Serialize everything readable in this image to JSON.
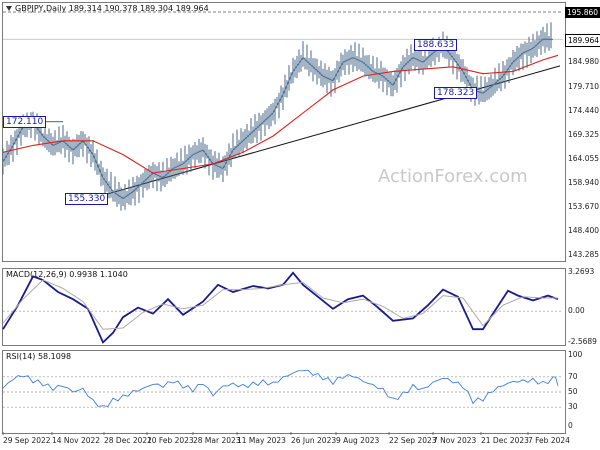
{
  "header": {
    "symbol": "GBPJPY,Daily",
    "ohlc": "189.314 190.378 189.304 189.964"
  },
  "watermark": "ActionForex.com",
  "chart_data": [
    {
      "type": "line",
      "title": "GBPJPY,Daily",
      "ylim": [
        143.285,
        195.86
      ],
      "y_ticks": [
        "195.860",
        "189.964",
        "184.980",
        "179.710",
        "174.440",
        "169.325",
        "164.055",
        "158.940",
        "153.670",
        "148.400",
        "143.285"
      ],
      "price_box": "195.860",
      "current_box": "189.964",
      "x_labels": [
        "29 Sep 2022",
        "14 Nov 2022",
        "28 Dec 2022",
        "10 Feb 2023",
        "28 Mar 2023",
        "11 May 2023",
        "26 Jun 2023",
        "9 Aug 2023",
        "22 Sep 2023",
        "7 Nov 2023",
        "21 Dec 2023",
        "7 Feb 2024"
      ],
      "annotations": [
        "172.110",
        "155.330",
        "188.633",
        "178.323"
      ],
      "series": [
        {
          "name": "",
          "x": [
            0,
            10,
            20,
            30,
            40,
            50,
            60,
            70,
            80,
            90,
            100,
            110,
            120,
            130,
            140,
            150,
            160,
            170,
            180,
            190,
            200,
            210,
            220,
            230,
            240,
            250,
            260,
            270,
            280,
            290,
            300,
            310,
            320,
            330,
            340,
            350,
            360,
            370,
            380,
            390,
            400,
            410,
            420,
            430,
            440,
            450,
            460,
            470,
            480,
            490,
            500,
            510,
            520,
            530,
            540,
            550
          ],
          "y": [
            163.5,
            167,
            171,
            172,
            169,
            167,
            168,
            166,
            168,
            165,
            160,
            157,
            155.5,
            157,
            159,
            161,
            160,
            162,
            163,
            165,
            166,
            163,
            162,
            166,
            168,
            170,
            172,
            174,
            178,
            183,
            186,
            184,
            182,
            181,
            185,
            186,
            185,
            183,
            182,
            180,
            184,
            186,
            185,
            187,
            188.6,
            186,
            183,
            179,
            178.3,
            180,
            182,
            185,
            187,
            188,
            190,
            189.9
          ]
        },
        {
          "name": "",
          "x": [
            0,
            30,
            60,
            90,
            120,
            150,
            180,
            210,
            240,
            270,
            300,
            330,
            360,
            390,
            420,
            450,
            480,
            510,
            540,
            555
          ],
          "y": [
            165.5,
            167,
            168,
            168,
            165,
            161,
            162,
            163,
            165.5,
            169,
            174,
            179,
            182,
            183,
            183.5,
            184,
            182.5,
            183,
            185.5,
            186.5
          ]
        }
      ]
    },
    {
      "type": "line",
      "title": "MACD(12,26,9) 0.9938 1.1040",
      "ylim": [
        -2.5689,
        3.2693
      ],
      "y_ticks": [
        "3.2693",
        "0.00",
        "-2.5689"
      ],
      "series": [
        {
          "name": "",
          "x": [
            0,
            15,
            30,
            40,
            55,
            70,
            85,
            100,
            110,
            120,
            135,
            150,
            165,
            180,
            200,
            215,
            230,
            250,
            265,
            280,
            290,
            300,
            315,
            330,
            345,
            360,
            375,
            390,
            410,
            425,
            440,
            455,
            470,
            480,
            490,
            505,
            515,
            530,
            545,
            555
          ],
          "y": [
            -1.5,
            0.5,
            2.9,
            2.6,
            1.6,
            1.0,
            0.2,
            -2.6,
            -1.8,
            -0.5,
            0.3,
            -0.2,
            1.0,
            -0.3,
            0.8,
            2.2,
            1.6,
            2.1,
            1.9,
            2.2,
            3.2,
            2.2,
            1.2,
            0.2,
            1.0,
            1.3,
            0.3,
            -0.8,
            -0.6,
            0.5,
            1.8,
            1.2,
            -1.5,
            -1.5,
            -0.2,
            1.7,
            1.3,
            0.9,
            1.3,
            1.0
          ]
        },
        {
          "name": "",
          "x": [
            0,
            20,
            40,
            60,
            80,
            100,
            120,
            140,
            160,
            180,
            200,
            220,
            240,
            260,
            280,
            300,
            320,
            340,
            360,
            380,
            400,
            420,
            440,
            460,
            480,
            500,
            520,
            540,
            555
          ],
          "y": [
            -1.0,
            1.0,
            2.6,
            1.9,
            0.8,
            -1.5,
            -1.4,
            -0.1,
            0.6,
            0.2,
            0.5,
            1.8,
            1.8,
            1.9,
            2.2,
            2.4,
            1.1,
            0.7,
            1.0,
            0.4,
            -0.6,
            -0.2,
            1.3,
            1.1,
            -1.2,
            0.5,
            1.2,
            1.1,
            1.1
          ]
        }
      ]
    },
    {
      "type": "line",
      "title": "RSI(14) 58.1098",
      "ylim": [
        0,
        100
      ],
      "y_ticks": [
        "100",
        "70",
        "50",
        "30",
        "0"
      ],
      "series": [
        {
          "name": "",
          "x": [
            0,
            10,
            20,
            30,
            40,
            50,
            60,
            70,
            80,
            90,
            100,
            110,
            120,
            130,
            140,
            150,
            160,
            170,
            180,
            190,
            200,
            210,
            220,
            230,
            240,
            250,
            260,
            270,
            280,
            290,
            300,
            310,
            320,
            330,
            340,
            350,
            360,
            370,
            380,
            390,
            400,
            410,
            420,
            430,
            440,
            450,
            460,
            470,
            480,
            490,
            500,
            510,
            520,
            530,
            540,
            550,
            555
          ],
          "y": [
            55,
            66,
            70,
            62,
            58,
            52,
            57,
            50,
            55,
            40,
            32,
            42,
            46,
            52,
            55,
            60,
            56,
            62,
            55,
            50,
            60,
            45,
            58,
            62,
            60,
            63,
            66,
            63,
            70,
            75,
            78,
            72,
            66,
            60,
            68,
            70,
            64,
            60,
            55,
            42,
            50,
            60,
            55,
            63,
            68,
            62,
            55,
            35,
            38,
            50,
            58,
            64,
            66,
            68,
            64,
            70,
            58.1
          ]
        }
      ]
    }
  ]
}
